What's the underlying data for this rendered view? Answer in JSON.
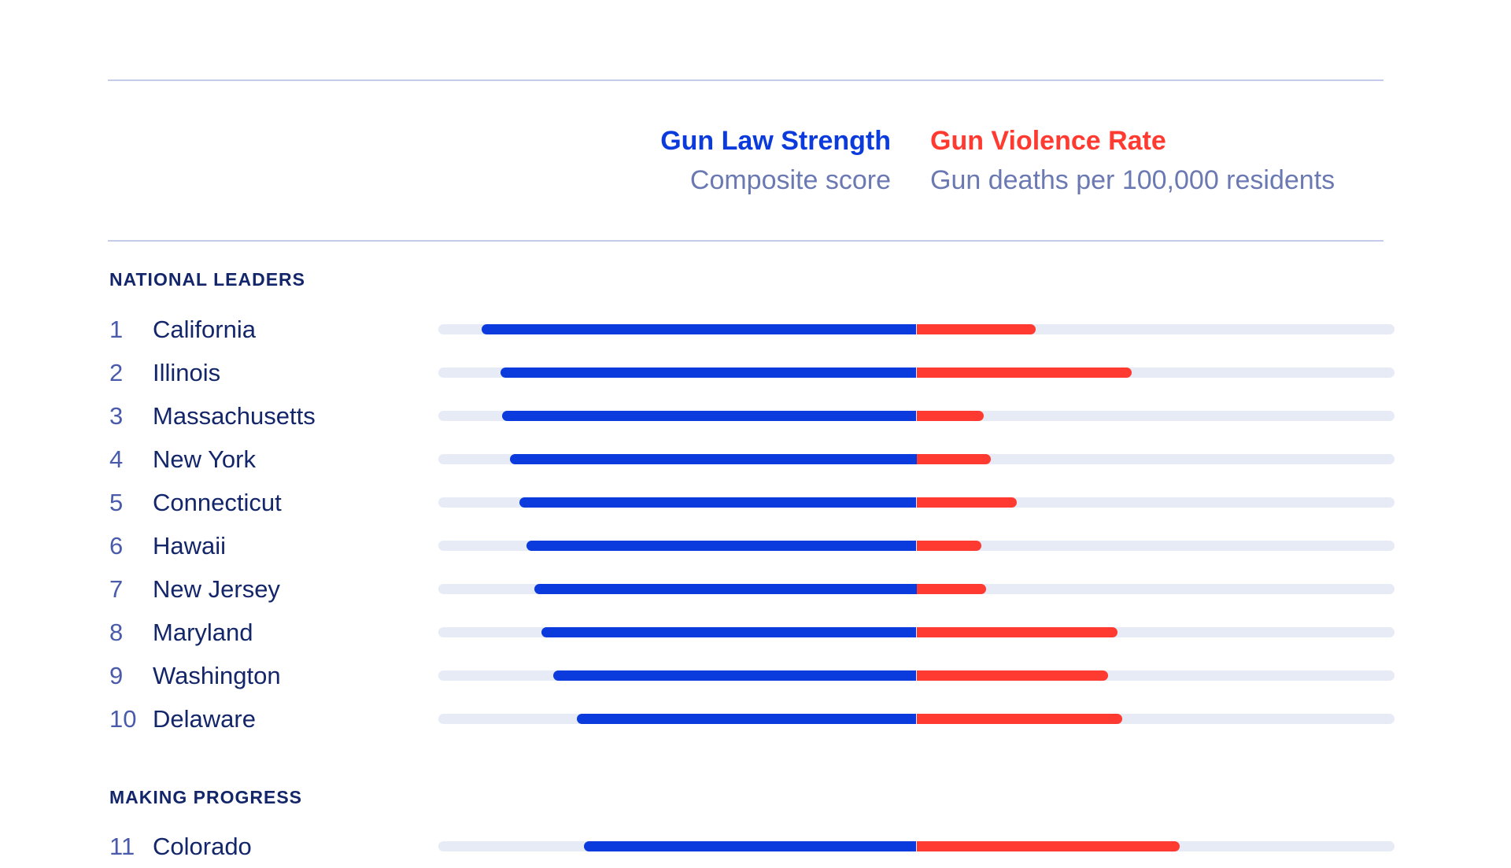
{
  "header": {
    "left_title": "Gun Law Strength",
    "left_subtitle": "Composite score",
    "right_title": "Gun Violence Rate",
    "right_subtitle": "Gun deaths per 100,000 residents"
  },
  "colors": {
    "law_strength": "#0b3bdc",
    "violence_rate": "#ff3a30",
    "track": "#e6ebf6"
  },
  "chart_data": {
    "type": "bar",
    "note_scale": "relative bar length (0-1), no values printed",
    "sections": [
      {
        "label": "NATIONAL LEADERS",
        "rows": [
          {
            "rank": "1",
            "state": "California",
            "law_strength": 0.91,
            "violence_rate": 0.25
          },
          {
            "rank": "2",
            "state": "Illinois",
            "law_strength": 0.87,
            "violence_rate": 0.45
          },
          {
            "rank": "3",
            "state": "Massachusetts",
            "law_strength": 0.867,
            "violence_rate": 0.14
          },
          {
            "rank": "4",
            "state": "New York",
            "law_strength": 0.85,
            "violence_rate": 0.155
          },
          {
            "rank": "5",
            "state": "Connecticut",
            "law_strength": 0.83,
            "violence_rate": 0.21
          },
          {
            "rank": "6",
            "state": "Hawaii",
            "law_strength": 0.815,
            "violence_rate": 0.135
          },
          {
            "rank": "7",
            "state": "New Jersey",
            "law_strength": 0.8,
            "violence_rate": 0.145
          },
          {
            "rank": "8",
            "state": "Maryland",
            "law_strength": 0.785,
            "violence_rate": 0.42
          },
          {
            "rank": "9",
            "state": "Washington",
            "law_strength": 0.76,
            "violence_rate": 0.4
          },
          {
            "rank": "10",
            "state": "Delaware",
            "law_strength": 0.71,
            "violence_rate": 0.43
          }
        ]
      },
      {
        "label": "MAKING PROGRESS",
        "rows": [
          {
            "rank": "11",
            "state": "Colorado",
            "law_strength": 0.695,
            "violence_rate": 0.55
          }
        ]
      }
    ]
  }
}
